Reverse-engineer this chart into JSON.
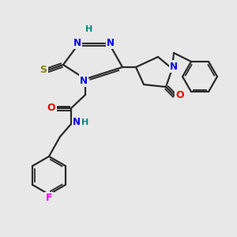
{
  "bg_color": "#e8e8e8",
  "bond_color": "#2a2a2a",
  "bond_width": 1.6,
  "atom_colors": {
    "N": "#0000ee",
    "O": "#ee0000",
    "S": "#888800",
    "F": "#ee00ee",
    "H": "#008888",
    "C": "#2a2a2a"
  },
  "fs": 9
}
